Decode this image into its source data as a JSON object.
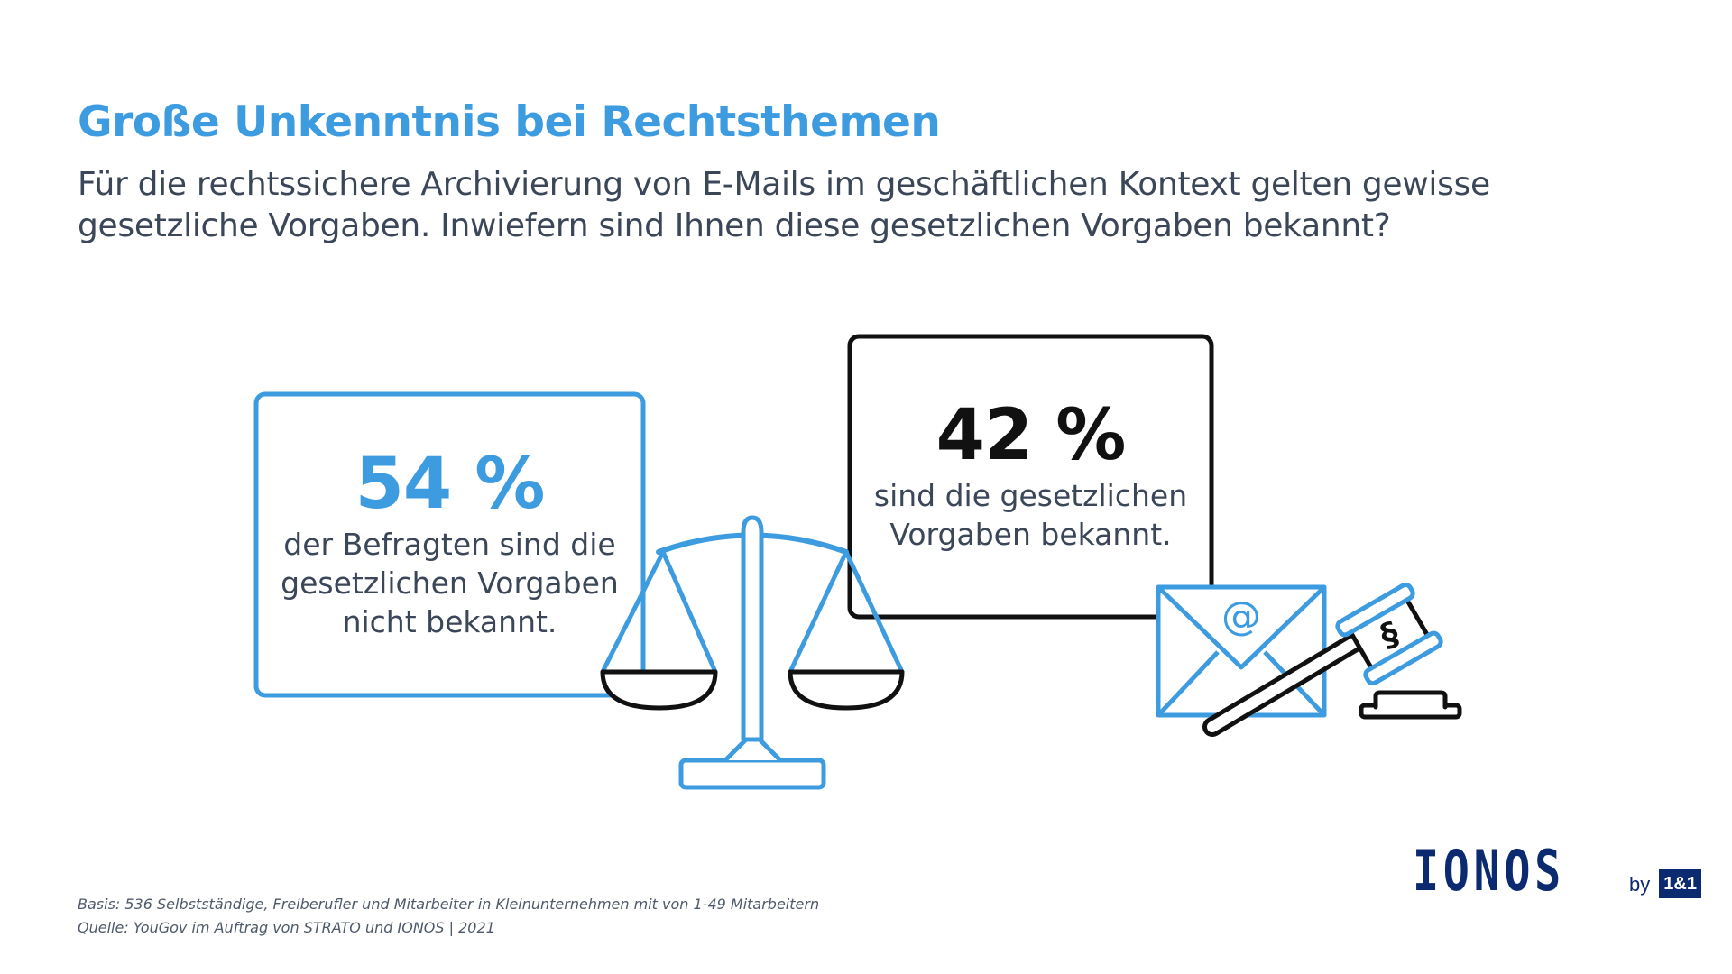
{
  "title": "Große Unkenntnis bei Rechtsthemen",
  "subtitle": "Für die rechtssichere Archivierung von E-Mails im geschäftlichen Kontext gelten gewisse gesetzliche Vorgaben. Inwiefern sind Ihnen diese gesetzlichen Vorgaben bekannt?",
  "stat_left": {
    "percent": "54 %",
    "line1": "der Befragten sind die",
    "line2": "gesetzlichen Vorgaben",
    "line3": "nicht bekannt.",
    "color": "#3d9be0"
  },
  "stat_right": {
    "percent": "42 %",
    "line1": "sind die gesetzlichen",
    "line2": "Vorgaben bekannt.",
    "color": "#111111"
  },
  "icons": {
    "scale": "scales-of-justice-icon",
    "mail": "envelope-at-icon",
    "gavel": "gavel-paragraph-icon",
    "paragraph_symbol": "§",
    "at_symbol": "@"
  },
  "footer": {
    "basis": "Basis: 536 Selbstständige, Freiberufler und Mitarbeiter in Kleinunternehmen mit von 1-49 Mitarbeitern",
    "source": "Quelle: YouGov im Auftrag von STRATO und IONOS | 2021"
  },
  "logo": {
    "main": "IONOS",
    "by": "by",
    "brand": "1&1"
  },
  "colors": {
    "accent": "#3d9be0",
    "dark": "#111111",
    "brand": "#0b2a6f"
  }
}
